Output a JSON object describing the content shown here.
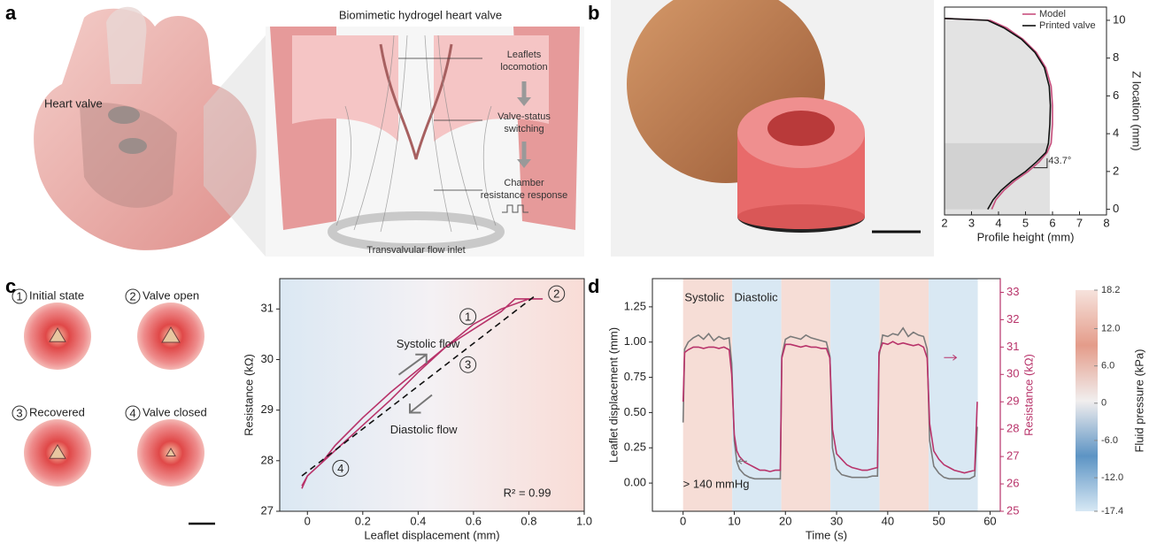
{
  "panel_labels": [
    "a",
    "b",
    "c",
    "d"
  ],
  "illustration": {
    "heart_label": "Heart valve",
    "title": "Biomimetic hydrogel heart valve",
    "callouts": [
      [
        "Leaflets",
        "locomotion"
      ],
      [
        "Valve-status",
        "switching"
      ],
      [
        "Chamber",
        "resistance response"
      ],
      [
        "Transvalvular flow inlet"
      ]
    ]
  },
  "states": [
    {
      "number": "1",
      "label": "Initial state"
    },
    {
      "number": "2",
      "label": "Valve open"
    },
    {
      "number": "3",
      "label": "Recovered"
    },
    {
      "number": "4",
      "label": "Valve closed"
    }
  ],
  "chart_data": [
    {
      "type": "profile",
      "xlabel": "Profile height (mm)",
      "ylabel": "Z location (mm)",
      "xlim": [
        2,
        8
      ],
      "ylim": [
        -0.3,
        10.7
      ],
      "xticks": [
        2,
        3,
        4,
        5,
        6,
        7,
        8
      ],
      "yticks": [
        0,
        2,
        4,
        6,
        8,
        10
      ],
      "legend": "upper right",
      "annotations": [
        "43.7°"
      ],
      "series": [
        {
          "name": "Model",
          "color": "#c8507e",
          "x": [
            3.75,
            3.9,
            4.2,
            4.6,
            5.1,
            5.5,
            5.8,
            5.95,
            6.0,
            6.0,
            5.95,
            5.75,
            5.4,
            4.9,
            4.3,
            3.7,
            2
          ],
          "y": [
            0,
            0.5,
            1,
            1.5,
            2,
            2.5,
            3,
            3.5,
            4.5,
            5.5,
            6.5,
            7.5,
            8.3,
            9.0,
            9.6,
            10.0,
            10.1
          ]
        },
        {
          "name": "Printed valve",
          "color": "#111111",
          "x": [
            3.6,
            3.8,
            4.1,
            4.5,
            5.0,
            5.4,
            5.75,
            5.85,
            5.9,
            5.92,
            5.88,
            5.7,
            5.35,
            4.85,
            4.2,
            3.6,
            2
          ],
          "y": [
            0,
            0.5,
            1,
            1.5,
            2,
            2.5,
            3,
            3.5,
            4.5,
            5.5,
            6.5,
            7.5,
            8.3,
            9.0,
            9.6,
            10.0,
            10.1
          ]
        }
      ]
    },
    {
      "type": "hysteresis",
      "xlabel": "Leaflet displacement (mm)",
      "ylabel": "Resistance (kΩ)",
      "xlim": [
        -0.1,
        1.0
      ],
      "ylim": [
        27,
        31.6
      ],
      "xticks": [
        0,
        0.2,
        0.4,
        0.6,
        0.8,
        {
          "value": 1,
          "label": "1.0"
        }
      ],
      "yticks": [
        27,
        28,
        29,
        30,
        31
      ],
      "annotations": [
        "Systolic flow",
        "Diastolic flow",
        "R² = 0.99"
      ],
      "series": [
        {
          "color": "#b8336a",
          "x": [
            -0.02,
            0,
            0.05,
            0.1,
            0.2,
            0.3,
            0.4,
            0.5,
            0.6,
            0.7,
            0.75,
            0.85,
            0.8,
            0.7,
            0.6,
            0.5,
            0.4,
            0.3,
            0.2,
            0.1,
            0.0,
            -0.02
          ],
          "y": [
            27.45,
            27.7,
            27.95,
            28.3,
            28.85,
            29.35,
            29.8,
            30.25,
            30.6,
            30.95,
            31.2,
            31.2,
            31.2,
            31.0,
            30.7,
            30.25,
            29.75,
            29.2,
            28.7,
            28.2,
            27.7,
            27.5
          ]
        },
        {
          "color": "#111111",
          "dash": true,
          "x": [
            -0.02,
            0.82
          ],
          "y": [
            27.7,
            31.25
          ]
        }
      ]
    },
    {
      "type": "timeseries",
      "xlabel": "Time (s)",
      "ylabel": "Leaflet displacement (mm)",
      "y2label": "Resistance (kΩ)",
      "xlim": [
        -6,
        62
      ],
      "ylim": [
        -0.2,
        1.45
      ],
      "y2lim": [
        25,
        33.5
      ],
      "xticks": [
        0,
        10,
        20,
        30,
        40,
        50,
        60
      ],
      "yticks": [
        {
          "value": 0,
          "label": "0.00"
        },
        0.25,
        {
          "value": 0.5,
          "label": "0.50"
        },
        0.75,
        {
          "value": 1,
          "label": "1.00"
        },
        1.25
      ],
      "y2ticks": [
        25,
        26,
        27,
        28,
        29,
        30,
        31,
        32,
        33
      ],
      "annotations": [
        "Systolic",
        "Diastolic",
        "> 140 mmHg"
      ],
      "phase_edges": [
        0,
        9.6,
        19.2,
        28.8,
        38.4,
        48,
        57.6
      ],
      "phase_colors": [
        "#f6ddd6",
        "#d9e8f3"
      ],
      "x": [
        0,
        0.3,
        1,
        2,
        3,
        4,
        5,
        6,
        7,
        8,
        9,
        9.5,
        10,
        10.5,
        11,
        12,
        13,
        14,
        15,
        16,
        17,
        18,
        19,
        19.3,
        20,
        21,
        22,
        23,
        24,
        25,
        26,
        27,
        28,
        28.7,
        29.2,
        30,
        31,
        32,
        33,
        34,
        35,
        36,
        37,
        38,
        38.3,
        39,
        40,
        41,
        42,
        43,
        44,
        45,
        46,
        47,
        47.7,
        48.2,
        49,
        50,
        51,
        52,
        53,
        54,
        55,
        56,
        57,
        57.5
      ],
      "series": [
        {
          "color": "#7a7a7a",
          "values": [
            0.43,
            0.95,
            1.0,
            1.03,
            1.05,
            1.02,
            1.06,
            1.01,
            1.04,
            1.02,
            1.03,
            0.85,
            0.3,
            0.15,
            0.1,
            0.06,
            0.04,
            0.03,
            0.03,
            0.03,
            0.03,
            0.03,
            0.03,
            0.9,
            1.02,
            1.04,
            1.03,
            1.02,
            1.05,
            1.03,
            1.02,
            1.01,
            1.0,
            0.9,
            0.25,
            0.1,
            0.06,
            0.05,
            0.04,
            0.04,
            0.04,
            0.04,
            0.05,
            0.05,
            0.9,
            1.05,
            1.04,
            1.06,
            1.05,
            1.1,
            1.04,
            1.07,
            1.05,
            1.04,
            0.95,
            0.3,
            0.12,
            0.07,
            0.04,
            0.03,
            0.03,
            0.03,
            0.03,
            0.03,
            0.05,
            0.4
          ]
        },
        {
          "color": "#b8336a",
          "axis": "y2",
          "values": [
            29.0,
            30.8,
            30.9,
            31.0,
            31.0,
            30.95,
            31.0,
            31.0,
            30.95,
            31.0,
            30.9,
            30.0,
            27.8,
            27.2,
            27.0,
            26.8,
            26.7,
            26.6,
            26.5,
            26.5,
            26.45,
            26.5,
            26.5,
            30.6,
            31.1,
            31.1,
            31.05,
            31.0,
            31.05,
            31.0,
            31.0,
            30.95,
            30.95,
            30.6,
            28.0,
            27.1,
            26.9,
            26.7,
            26.6,
            26.55,
            26.5,
            26.5,
            26.55,
            26.6,
            30.8,
            31.15,
            31.1,
            31.2,
            31.1,
            31.15,
            31.1,
            31.05,
            31.1,
            31.0,
            30.6,
            28.2,
            27.2,
            26.9,
            26.7,
            26.6,
            26.5,
            26.45,
            26.4,
            26.45,
            26.5,
            29.0
          ]
        }
      ]
    },
    {
      "type": "colorbar",
      "ylabel": "Fluid pressure (kPa)",
      "ylim": [
        -17.4,
        18.2
      ],
      "yticks": [
        18.2,
        {
          "value": 12,
          "label": "12.0"
        },
        {
          "value": 6,
          "label": "6.0"
        },
        0,
        {
          "value": -6,
          "label": "-6.0"
        },
        {
          "value": -12,
          "label": "-12.0"
        },
        -17.4
      ],
      "colors": [
        "#d7e8f4",
        "#5d94c4",
        "#f1eeee",
        "#e49c8a",
        "#f6e2dc"
      ]
    }
  ]
}
